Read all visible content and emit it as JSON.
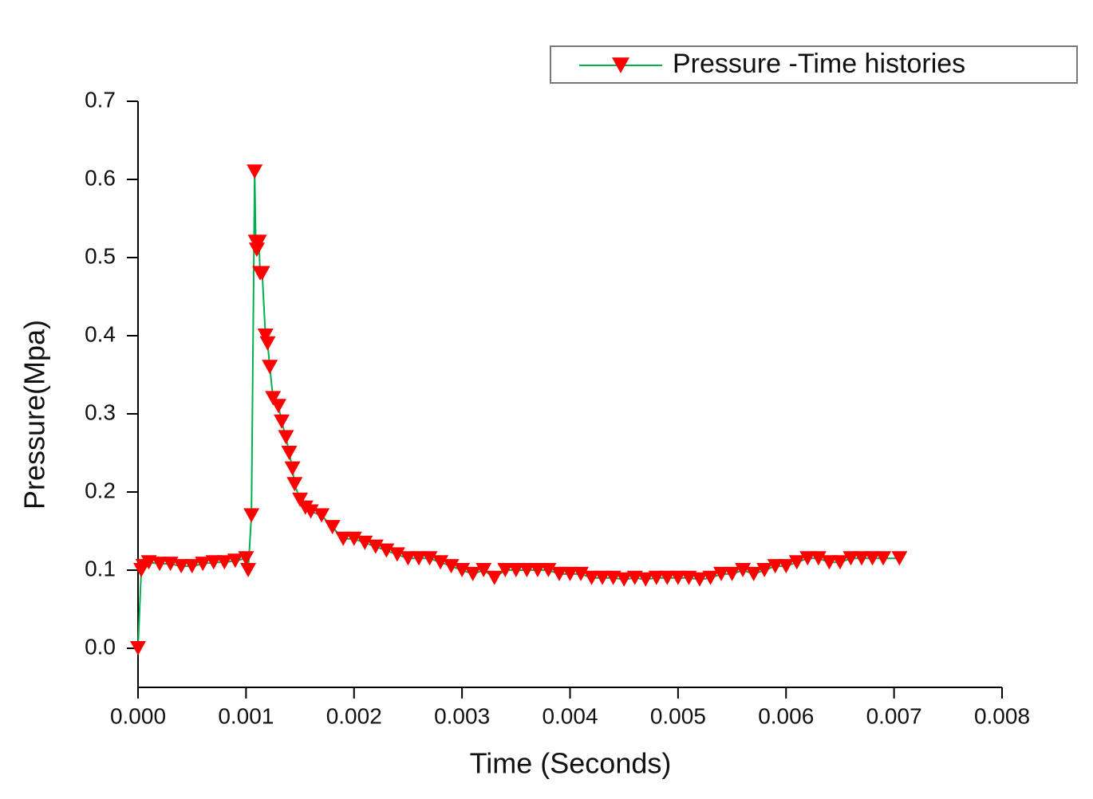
{
  "chart_data": {
    "type": "line",
    "x_label": "Time (Seconds)",
    "y_label": "Pressure(Mpa)",
    "x": [
      0,
      3e-05,
      5e-05,
      0.0001,
      0.0002,
      0.0003,
      0.0004,
      0.0005,
      0.0006,
      0.0007,
      0.0008,
      0.0009,
      0.001,
      0.00102,
      0.00105,
      0.00108,
      0.00109,
      0.0011,
      0.00112,
      0.00113,
      0.00115,
      0.00118,
      0.0012,
      0.00122,
      0.00125,
      0.0013,
      0.00133,
      0.00137,
      0.0014,
      0.00143,
      0.00145,
      0.0015,
      0.00155,
      0.0016,
      0.0017,
      0.0018,
      0.0019,
      0.002,
      0.0021,
      0.0022,
      0.0023,
      0.0024,
      0.0025,
      0.0026,
      0.0027,
      0.0028,
      0.0029,
      0.003,
      0.0031,
      0.0032,
      0.0033,
      0.0034,
      0.0035,
      0.0036,
      0.0037,
      0.0038,
      0.0039,
      0.004,
      0.0041,
      0.0042,
      0.0043,
      0.0044,
      0.0045,
      0.0046,
      0.0047,
      0.0048,
      0.0049,
      0.005,
      0.0051,
      0.0052,
      0.0053,
      0.0054,
      0.0055,
      0.0056,
      0.0057,
      0.0058,
      0.0059,
      0.006,
      0.0061,
      0.0062,
      0.0063,
      0.0064,
      0.0065,
      0.0066,
      0.0067,
      0.0068,
      0.0069,
      0.00705
    ],
    "series": [
      {
        "name": "Pressure -Time histories",
        "color": "#ff0000",
        "line_color": "#00b050",
        "marker": "triangle-down",
        "values": [
          0.0,
          0.1,
          0.105,
          0.11,
          0.108,
          0.108,
          0.105,
          0.105,
          0.108,
          0.11,
          0.11,
          0.112,
          0.115,
          0.1,
          0.17,
          0.61,
          0.52,
          0.51,
          0.52,
          0.48,
          0.48,
          0.4,
          0.39,
          0.36,
          0.32,
          0.31,
          0.29,
          0.27,
          0.25,
          0.23,
          0.21,
          0.19,
          0.18,
          0.175,
          0.17,
          0.155,
          0.14,
          0.14,
          0.135,
          0.13,
          0.125,
          0.12,
          0.115,
          0.115,
          0.115,
          0.11,
          0.105,
          0.1,
          0.095,
          0.1,
          0.09,
          0.1,
          0.1,
          0.1,
          0.1,
          0.1,
          0.095,
          0.095,
          0.095,
          0.09,
          0.09,
          0.09,
          0.088,
          0.09,
          0.088,
          0.09,
          0.09,
          0.09,
          0.09,
          0.088,
          0.09,
          0.095,
          0.095,
          0.1,
          0.095,
          0.1,
          0.105,
          0.105,
          0.11,
          0.115,
          0.115,
          0.11,
          0.11,
          0.115,
          0.115,
          0.115,
          0.115,
          0.115
        ]
      }
    ],
    "xlim": [
      0,
      0.008
    ],
    "xticks": [
      {
        "value": 0,
        "label": "0.000"
      },
      {
        "value": 0.001,
        "label": "0.001"
      },
      {
        "value": 0.002,
        "label": "0.002"
      },
      {
        "value": 0.003,
        "label": "0.003"
      },
      {
        "value": 0.004,
        "label": "0.004"
      },
      {
        "value": 0.005,
        "label": "0.005"
      },
      {
        "value": 0.006,
        "label": "0.006"
      },
      {
        "value": 0.007,
        "label": "0.007"
      },
      {
        "value": 0.008,
        "label": "0.008"
      }
    ],
    "ylim": [
      -0.05,
      0.7
    ],
    "yticks": [
      {
        "value": 0,
        "label": "0.0"
      },
      0.1,
      0.2,
      0.3,
      0.4,
      0.5,
      0.6,
      0.7
    ],
    "grid": false,
    "legend": "top-right"
  }
}
